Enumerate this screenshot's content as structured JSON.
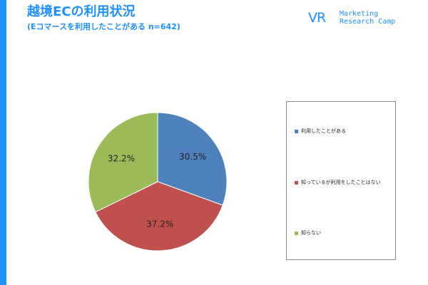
{
  "header": {
    "title": "越境ECの利用状況",
    "subtitle": "(Eコマースを利用したことがある n=642)"
  },
  "logo": {
    "mark": "VR",
    "line1": "Marketing",
    "line2": "Research Camp"
  },
  "chart_data": {
    "type": "pie",
    "categories": [
      "利用したことがある",
      "知っているが利用をしたことはない",
      "知らない"
    ],
    "values": [
      30.5,
      37.2,
      32.2
    ],
    "value_labels": [
      "30.5%",
      "37.2%",
      "32.2%"
    ],
    "colors": [
      "#4f81bd",
      "#c0504d",
      "#9bbb59"
    ],
    "start_angle": "12 o'clock, clockwise",
    "legend_position": "right",
    "title": "",
    "xlabel": "",
    "ylabel": ""
  }
}
